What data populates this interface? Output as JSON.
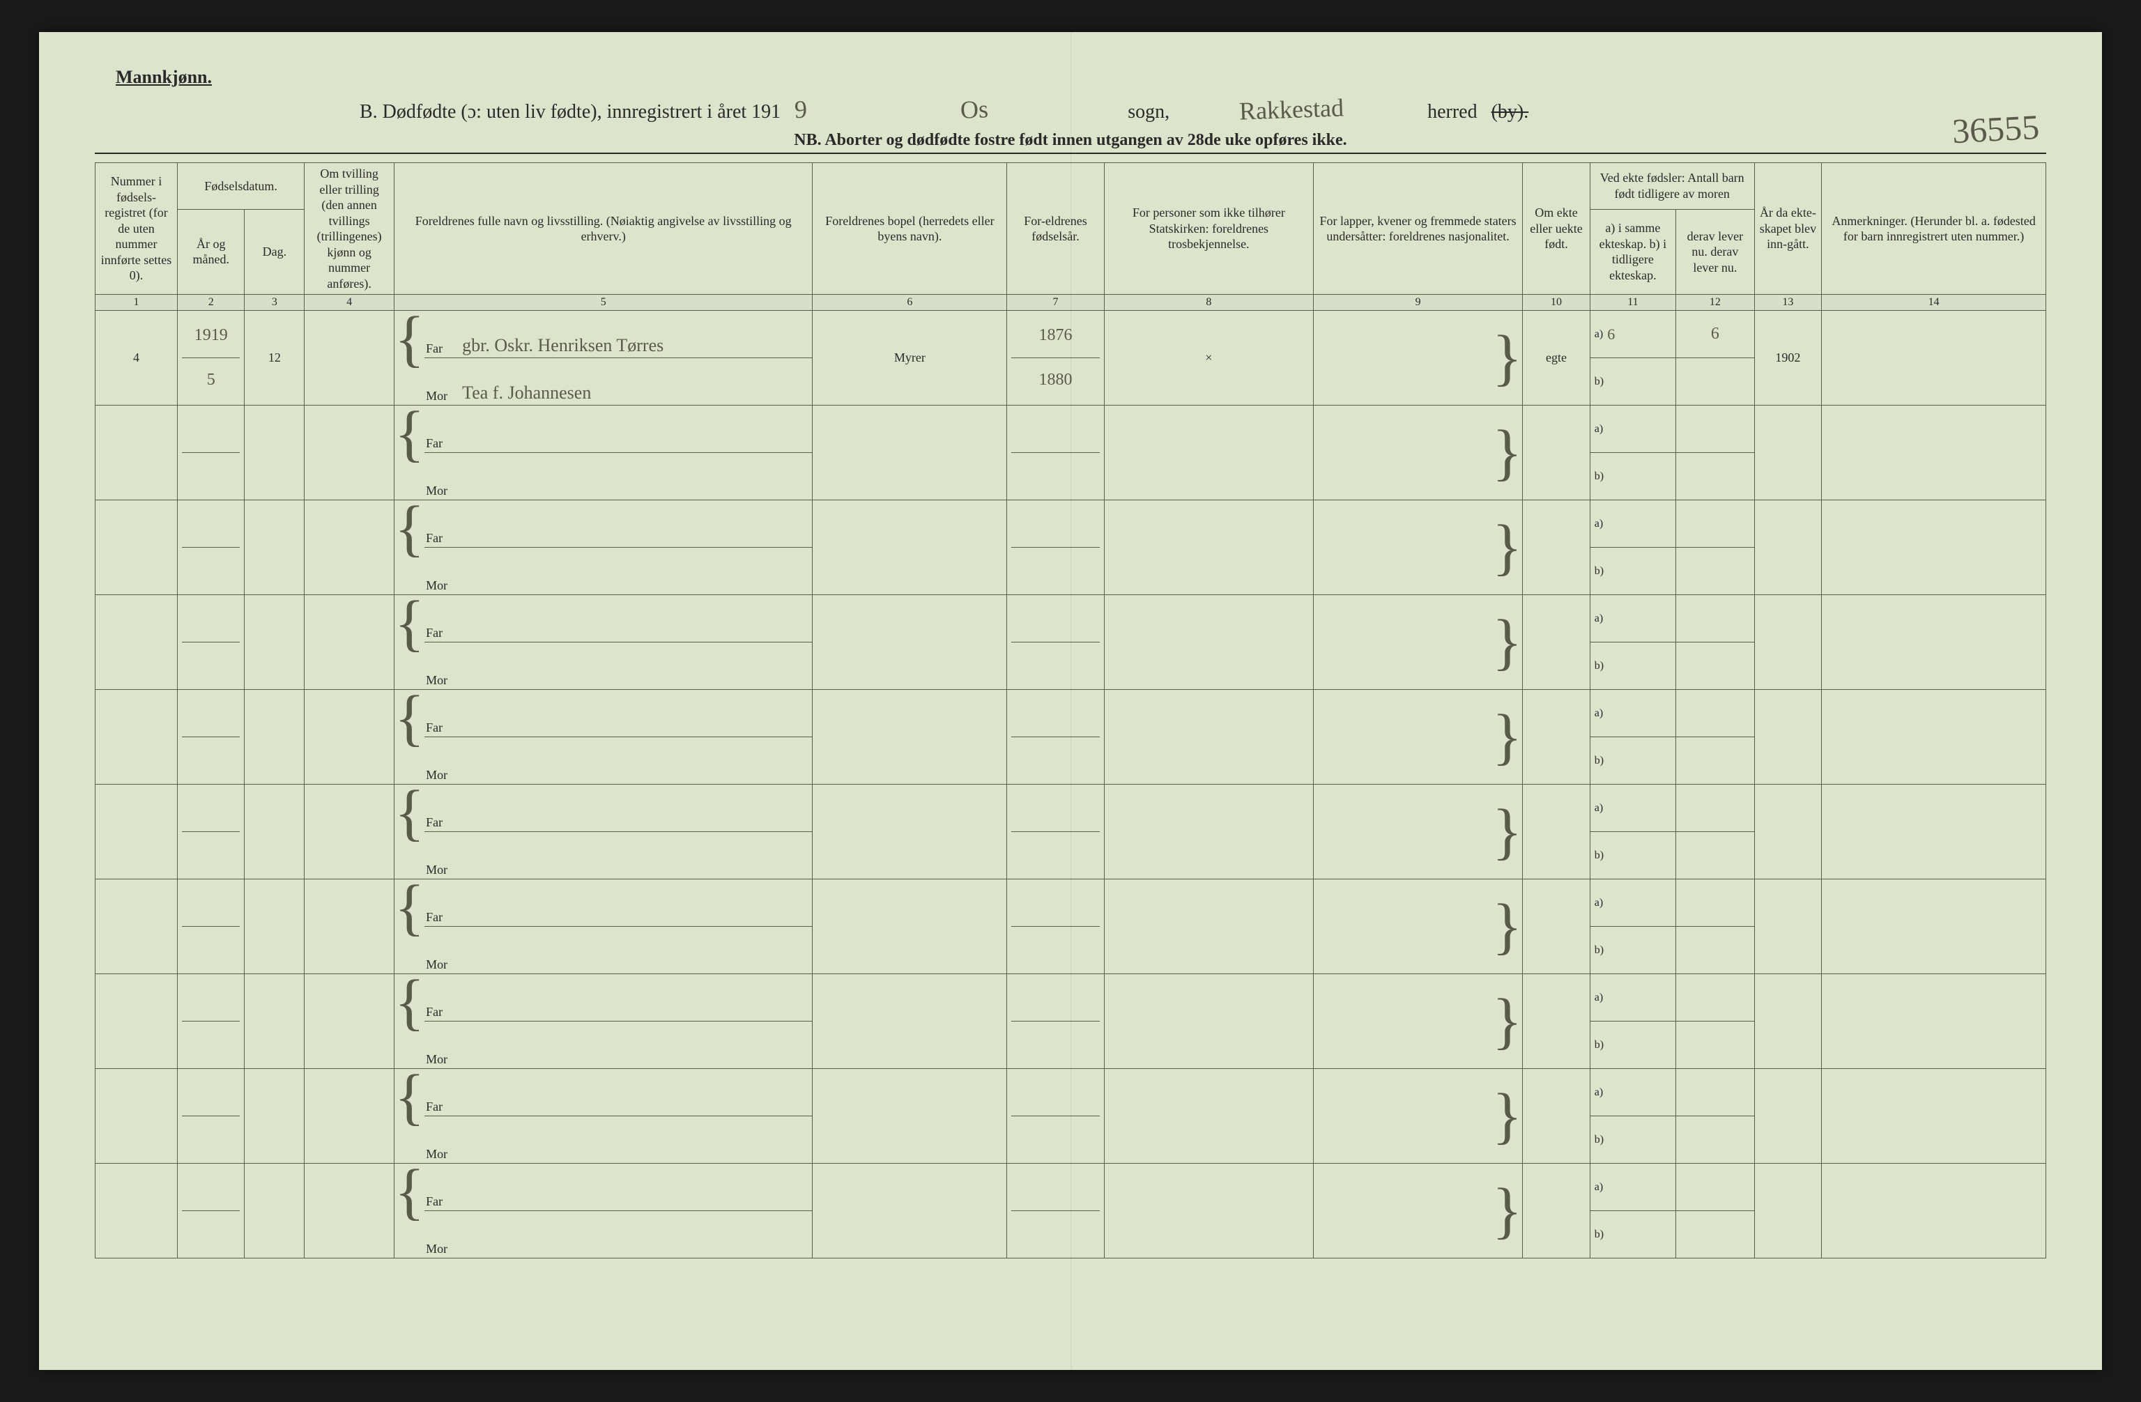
{
  "page": {
    "background_color": "#dde4cc",
    "ink_color": "#2a2a2a",
    "handwriting_color": "#5a5a4a",
    "rule_color": "#5a5a4a"
  },
  "header": {
    "gender": "Mannkjønn.",
    "title_prefix": "B. Dødfødte (ɔ: uten liv fødte), innregistrert i året 191",
    "year_digit": "9",
    "sogn_value": "Os",
    "sogn_label": "sogn,",
    "herred_value": "Rakkestad",
    "herred_label": "herred",
    "herred_struck": "(by).",
    "subtitle": "NB. Aborter og dødfødte fostre født innen utgangen av 28de uke opføres ikke.",
    "ref_number": "36555"
  },
  "columns": {
    "c1": "Nummer i fødsels-registret (for de uten nummer innførte settes 0).",
    "c23_top": "Fødselsdatum.",
    "c2": "År og måned.",
    "c3": "Dag.",
    "c4": "Om tvilling eller trilling (den annen tvillings (trillingenes) kjønn og nummer anføres).",
    "c5": "Foreldrenes fulle navn og livsstilling. (Nøiaktig angivelse av livsstilling og erhverv.)",
    "c6": "Foreldrenes bopel (herredets eller byens navn).",
    "c7": "For-eldrenes fødselsår.",
    "c8": "For personer som ikke tilhører Statskirken: foreldrenes trosbekjennelse.",
    "c9": "For lapper, kvener og fremmede staters undersåtter: foreldrenes nasjonalitet.",
    "c10": "Om ekte eller uekte født.",
    "c1112_top": "Ved ekte fødsler: Antall barn født tidligere av moren",
    "c11": "a) i samme ekteskap. b) i tidligere ekteskap.",
    "c12": "derav lever nu.  derav lever nu.",
    "c13": "År da ekte-skapet blev inn-gått.",
    "c14": "Anmerkninger. (Herunder bl. a. fødested for barn innregistrert uten nummer.)"
  },
  "colnums": [
    "1",
    "2",
    "3",
    "4",
    "5",
    "6",
    "7",
    "8",
    "9",
    "10",
    "11",
    "12",
    "13",
    "14"
  ],
  "far_label": "Far",
  "mor_label": "Mor",
  "ab_a": "a)",
  "ab_b": "b)",
  "rows": [
    {
      "num": "4",
      "year_month_top": "1919",
      "year_month_bot": "5",
      "day": "12",
      "far": "gbr. Oskr. Henriksen Tørres",
      "mor": "Tea f. Johannesen",
      "bopel": "Myrer",
      "far_year": "1876",
      "mor_year": "1880",
      "c8": "×",
      "ekte": "egte",
      "a_val": "6",
      "derav": "6",
      "ekteskap_year": "1902"
    },
    {},
    {},
    {},
    {},
    {},
    {},
    {},
    {},
    {}
  ]
}
